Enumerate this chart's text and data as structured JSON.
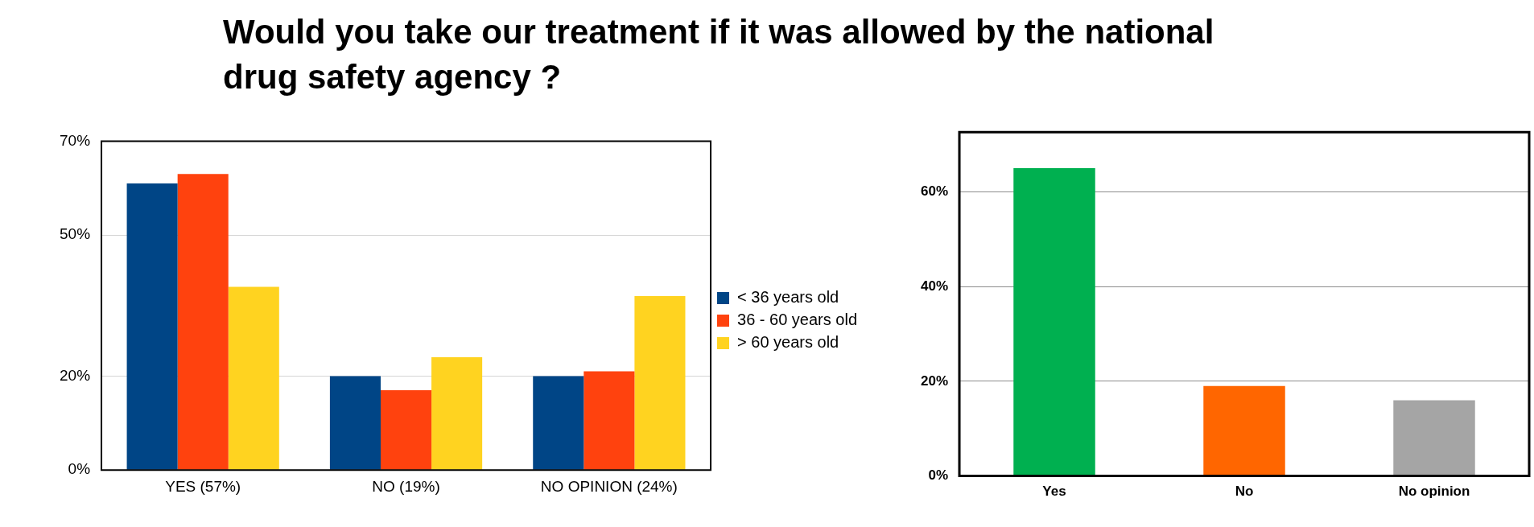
{
  "chart_data": [
    {
      "type": "bar",
      "title": "Would you take our treatment if it was allowed by the national drug safety agency ?",
      "categories": [
        "YES (57%)",
        "NO (19%)",
        "NO OPINION (24%)"
      ],
      "series": [
        {
          "name": "< 36 years old",
          "color": "#004586",
          "values": [
            61,
            20,
            20
          ]
        },
        {
          "name": "36 - 60 years old",
          "color": "#ff420e",
          "values": [
            63,
            17,
            21
          ]
        },
        {
          "name": "> 60 years old",
          "color": "#ffd320",
          "values": [
            39,
            24,
            37
          ]
        }
      ],
      "ylim": [
        0,
        70
      ],
      "yticks": [
        {
          "value": 0,
          "label": "0%"
        },
        {
          "value": 20,
          "label": "20%"
        },
        {
          "value": 50,
          "label": "50%"
        },
        {
          "value": 70,
          "label": "70%"
        }
      ],
      "grid": "y",
      "legend": "right"
    },
    {
      "type": "bar",
      "categories": [
        "Yes",
        "No",
        "No opinion"
      ],
      "values": [
        65,
        19,
        16
      ],
      "colors": [
        "#00b050",
        "#ff6600",
        "#a5a5a5"
      ],
      "ylim": [
        0,
        72.6
      ],
      "yticks": [
        {
          "value": 0,
          "label": "0%"
        },
        {
          "value": 20,
          "label": "20%"
        },
        {
          "value": 40,
          "label": "40%"
        },
        {
          "value": 60,
          "label": "60%"
        }
      ],
      "grid": "y"
    }
  ]
}
